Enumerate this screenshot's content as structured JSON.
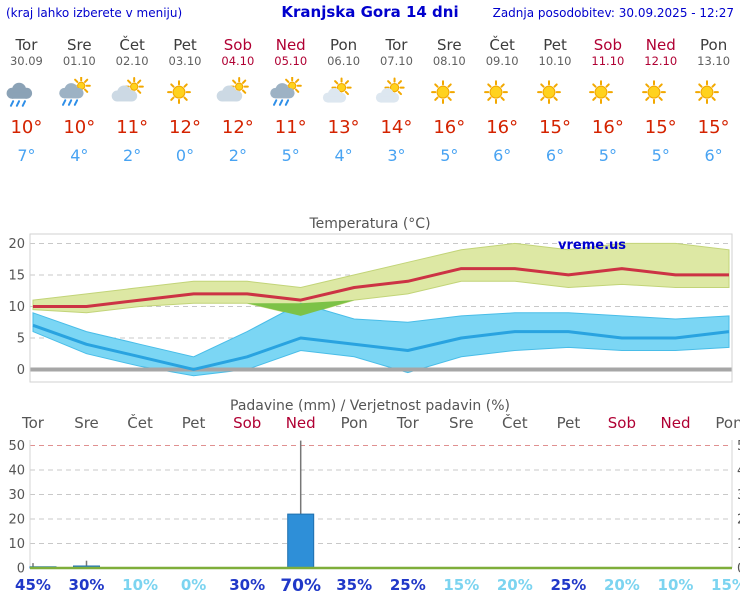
{
  "header": {
    "left_note": "(kraj lahko izberete v meniju)",
    "title": "Kranjska Gora 14 dni",
    "updated": "Zadnja posodobitev: 30.09.2025 - 12:27"
  },
  "units": {
    "degree": "°",
    "percent": "%"
  },
  "colors": {
    "header_text": "#0000cd",
    "weekday_text": "#3c3c3c",
    "weekend_text": "#b00033",
    "tmax_text": "#d42300",
    "tmin_text": "#48a3f2",
    "line_max": "#cc3344",
    "line_min": "#29a3e0",
    "band_max": "#dde8a4",
    "band_max_edge": "#c2d478",
    "band_min": "#7bd6f4",
    "band_min_edge": "#49bde8",
    "band_overlap": "#7cc247",
    "zero_line": "#a6a6a6",
    "grid": "#c8c8c8",
    "grid_top_red": "#e09090",
    "baseline_green": "#7fae3a",
    "bar_fill": "#2e8fd8",
    "bar_edge": "#1f6fae",
    "whisker": "#777777",
    "prob_high": "#2038c8",
    "prob_low": "#7cd4f0",
    "axis_label": "#555555"
  },
  "days": [
    {
      "name": "Tor",
      "date": "30.09",
      "weekend": false,
      "icon": "rain",
      "tmax": 10,
      "tmin": 7,
      "precip_mm": 0.5,
      "precip_hi": 2,
      "precip_prob": 45,
      "prob_high": true,
      "emphasis": false
    },
    {
      "name": "Sre",
      "date": "01.10",
      "weekend": false,
      "icon": "rain-sun",
      "tmax": 10,
      "tmin": 4,
      "precip_mm": 0.8,
      "precip_hi": 3,
      "precip_prob": 30,
      "prob_high": true,
      "emphasis": false
    },
    {
      "name": "Čet",
      "date": "02.10",
      "weekend": false,
      "icon": "cloud-sun",
      "tmax": 11,
      "tmin": 2,
      "precip_mm": 0,
      "precip_hi": 0,
      "precip_prob": 10,
      "prob_high": false,
      "emphasis": false
    },
    {
      "name": "Pet",
      "date": "03.10",
      "weekend": false,
      "icon": "sunny",
      "tmax": 12,
      "tmin": 0,
      "precip_mm": 0,
      "precip_hi": 0,
      "precip_prob": 0,
      "prob_high": false,
      "emphasis": false
    },
    {
      "name": "Sob",
      "date": "04.10",
      "weekend": true,
      "icon": "cloud-sun",
      "tmax": 12,
      "tmin": 2,
      "precip_mm": 0,
      "precip_hi": 0,
      "precip_prob": 30,
      "prob_high": true,
      "emphasis": false
    },
    {
      "name": "Ned",
      "date": "05.10",
      "weekend": true,
      "icon": "rain-sun",
      "tmax": 11,
      "tmin": 5,
      "precip_mm": 22,
      "precip_hi": 52,
      "precip_prob": 70,
      "prob_high": true,
      "emphasis": true
    },
    {
      "name": "Pon",
      "date": "06.10",
      "weekend": false,
      "icon": "partly",
      "tmax": 13,
      "tmin": 4,
      "precip_mm": 0,
      "precip_hi": 0,
      "precip_prob": 35,
      "prob_high": true,
      "emphasis": false
    },
    {
      "name": "Tor",
      "date": "07.10",
      "weekend": false,
      "icon": "partly",
      "tmax": 14,
      "tmin": 3,
      "precip_mm": 0,
      "precip_hi": 0,
      "precip_prob": 25,
      "prob_high": true,
      "emphasis": false
    },
    {
      "name": "Sre",
      "date": "08.10",
      "weekend": false,
      "icon": "sunny",
      "tmax": 16,
      "tmin": 5,
      "precip_mm": 0,
      "precip_hi": 0,
      "precip_prob": 15,
      "prob_high": false,
      "emphasis": false
    },
    {
      "name": "Čet",
      "date": "09.10",
      "weekend": false,
      "icon": "sunny",
      "tmax": 16,
      "tmin": 6,
      "precip_mm": 0,
      "precip_hi": 0,
      "precip_prob": 20,
      "prob_high": false,
      "emphasis": false
    },
    {
      "name": "Pet",
      "date": "10.10",
      "weekend": false,
      "icon": "sunny",
      "tmax": 15,
      "tmin": 6,
      "precip_mm": 0,
      "precip_hi": 0,
      "precip_prob": 25,
      "prob_high": true,
      "emphasis": false
    },
    {
      "name": "Sob",
      "date": "11.10",
      "weekend": true,
      "icon": "sunny",
      "tmax": 16,
      "tmin": 5,
      "precip_mm": 0,
      "precip_hi": 0,
      "precip_prob": 20,
      "prob_high": false,
      "emphasis": false
    },
    {
      "name": "Ned",
      "date": "12.10",
      "weekend": true,
      "icon": "sunny",
      "tmax": 15,
      "tmin": 5,
      "precip_mm": 0,
      "precip_hi": 0,
      "precip_prob": 10,
      "prob_high": false,
      "emphasis": false
    },
    {
      "name": "Pon",
      "date": "13.10",
      "weekend": false,
      "icon": "sunny",
      "tmax": 15,
      "tmin": 6,
      "precip_mm": 0,
      "precip_hi": 0,
      "precip_prob": 15,
      "prob_high": false,
      "emphasis": false
    }
  ],
  "temp_chart": {
    "type": "line",
    "title": "Temperatura (°C)",
    "watermark": "vreme.us",
    "ylim": [
      -2.5,
      21.5
    ],
    "yticks": [
      0,
      5,
      10,
      15,
      20
    ],
    "categories": [
      "Tor",
      "Sre",
      "Čet",
      "Pet",
      "Sob",
      "Ned",
      "Pon",
      "Tor",
      "Sre",
      "Čet",
      "Pet",
      "Sob",
      "Ned",
      "Pon"
    ],
    "series": [
      {
        "name": "tmax",
        "values": [
          10,
          10,
          11,
          12,
          12,
          11,
          13,
          14,
          16,
          16,
          15,
          16,
          15,
          15
        ]
      },
      {
        "name": "tmax_hi",
        "values": [
          11,
          12,
          13,
          14,
          14,
          13,
          15,
          17,
          19,
          20,
          19,
          20,
          20,
          19
        ]
      },
      {
        "name": "tmax_lo",
        "values": [
          9.5,
          9,
          10,
          10.5,
          10.5,
          8.5,
          11,
          12,
          14,
          14,
          13,
          13.5,
          13,
          13
        ]
      },
      {
        "name": "tmin",
        "values": [
          7,
          4,
          2,
          0,
          2,
          5,
          4,
          3,
          5,
          6,
          6,
          5,
          5,
          6
        ]
      },
      {
        "name": "tmin_hi",
        "values": [
          9,
          6,
          4,
          2,
          6,
          10.5,
          8,
          7.5,
          8.5,
          9,
          9,
          8.5,
          8,
          8.5
        ]
      },
      {
        "name": "tmin_lo",
        "values": [
          6,
          2.5,
          0.5,
          -1,
          0,
          3,
          2,
          -0.5,
          2,
          3,
          3.5,
          3,
          3,
          3.5
        ]
      }
    ]
  },
  "precip_chart": {
    "type": "bar",
    "title": "Padavine (mm) / Verjetnost padavin (%)",
    "ylim": [
      0,
      52
    ],
    "yticks": [
      0,
      10,
      20,
      30,
      40,
      50
    ],
    "categories": [
      "Tor",
      "Sre",
      "Čet",
      "Pet",
      "Sob",
      "Ned",
      "Pon",
      "Tor",
      "Sre",
      "Čet",
      "Pet",
      "Sob",
      "Ned",
      "Pon"
    ],
    "bars_mm": [
      0.5,
      0.8,
      0,
      0,
      0,
      22,
      0,
      0,
      0,
      0,
      0,
      0,
      0,
      0
    ],
    "whisker_hi_mm": [
      2,
      3,
      0,
      0,
      0,
      52,
      0,
      0,
      0,
      0,
      0,
      0,
      0,
      0
    ],
    "probability_pct": [
      45,
      30,
      10,
      0,
      30,
      70,
      35,
      25,
      15,
      20,
      25,
      20,
      10,
      15
    ]
  }
}
